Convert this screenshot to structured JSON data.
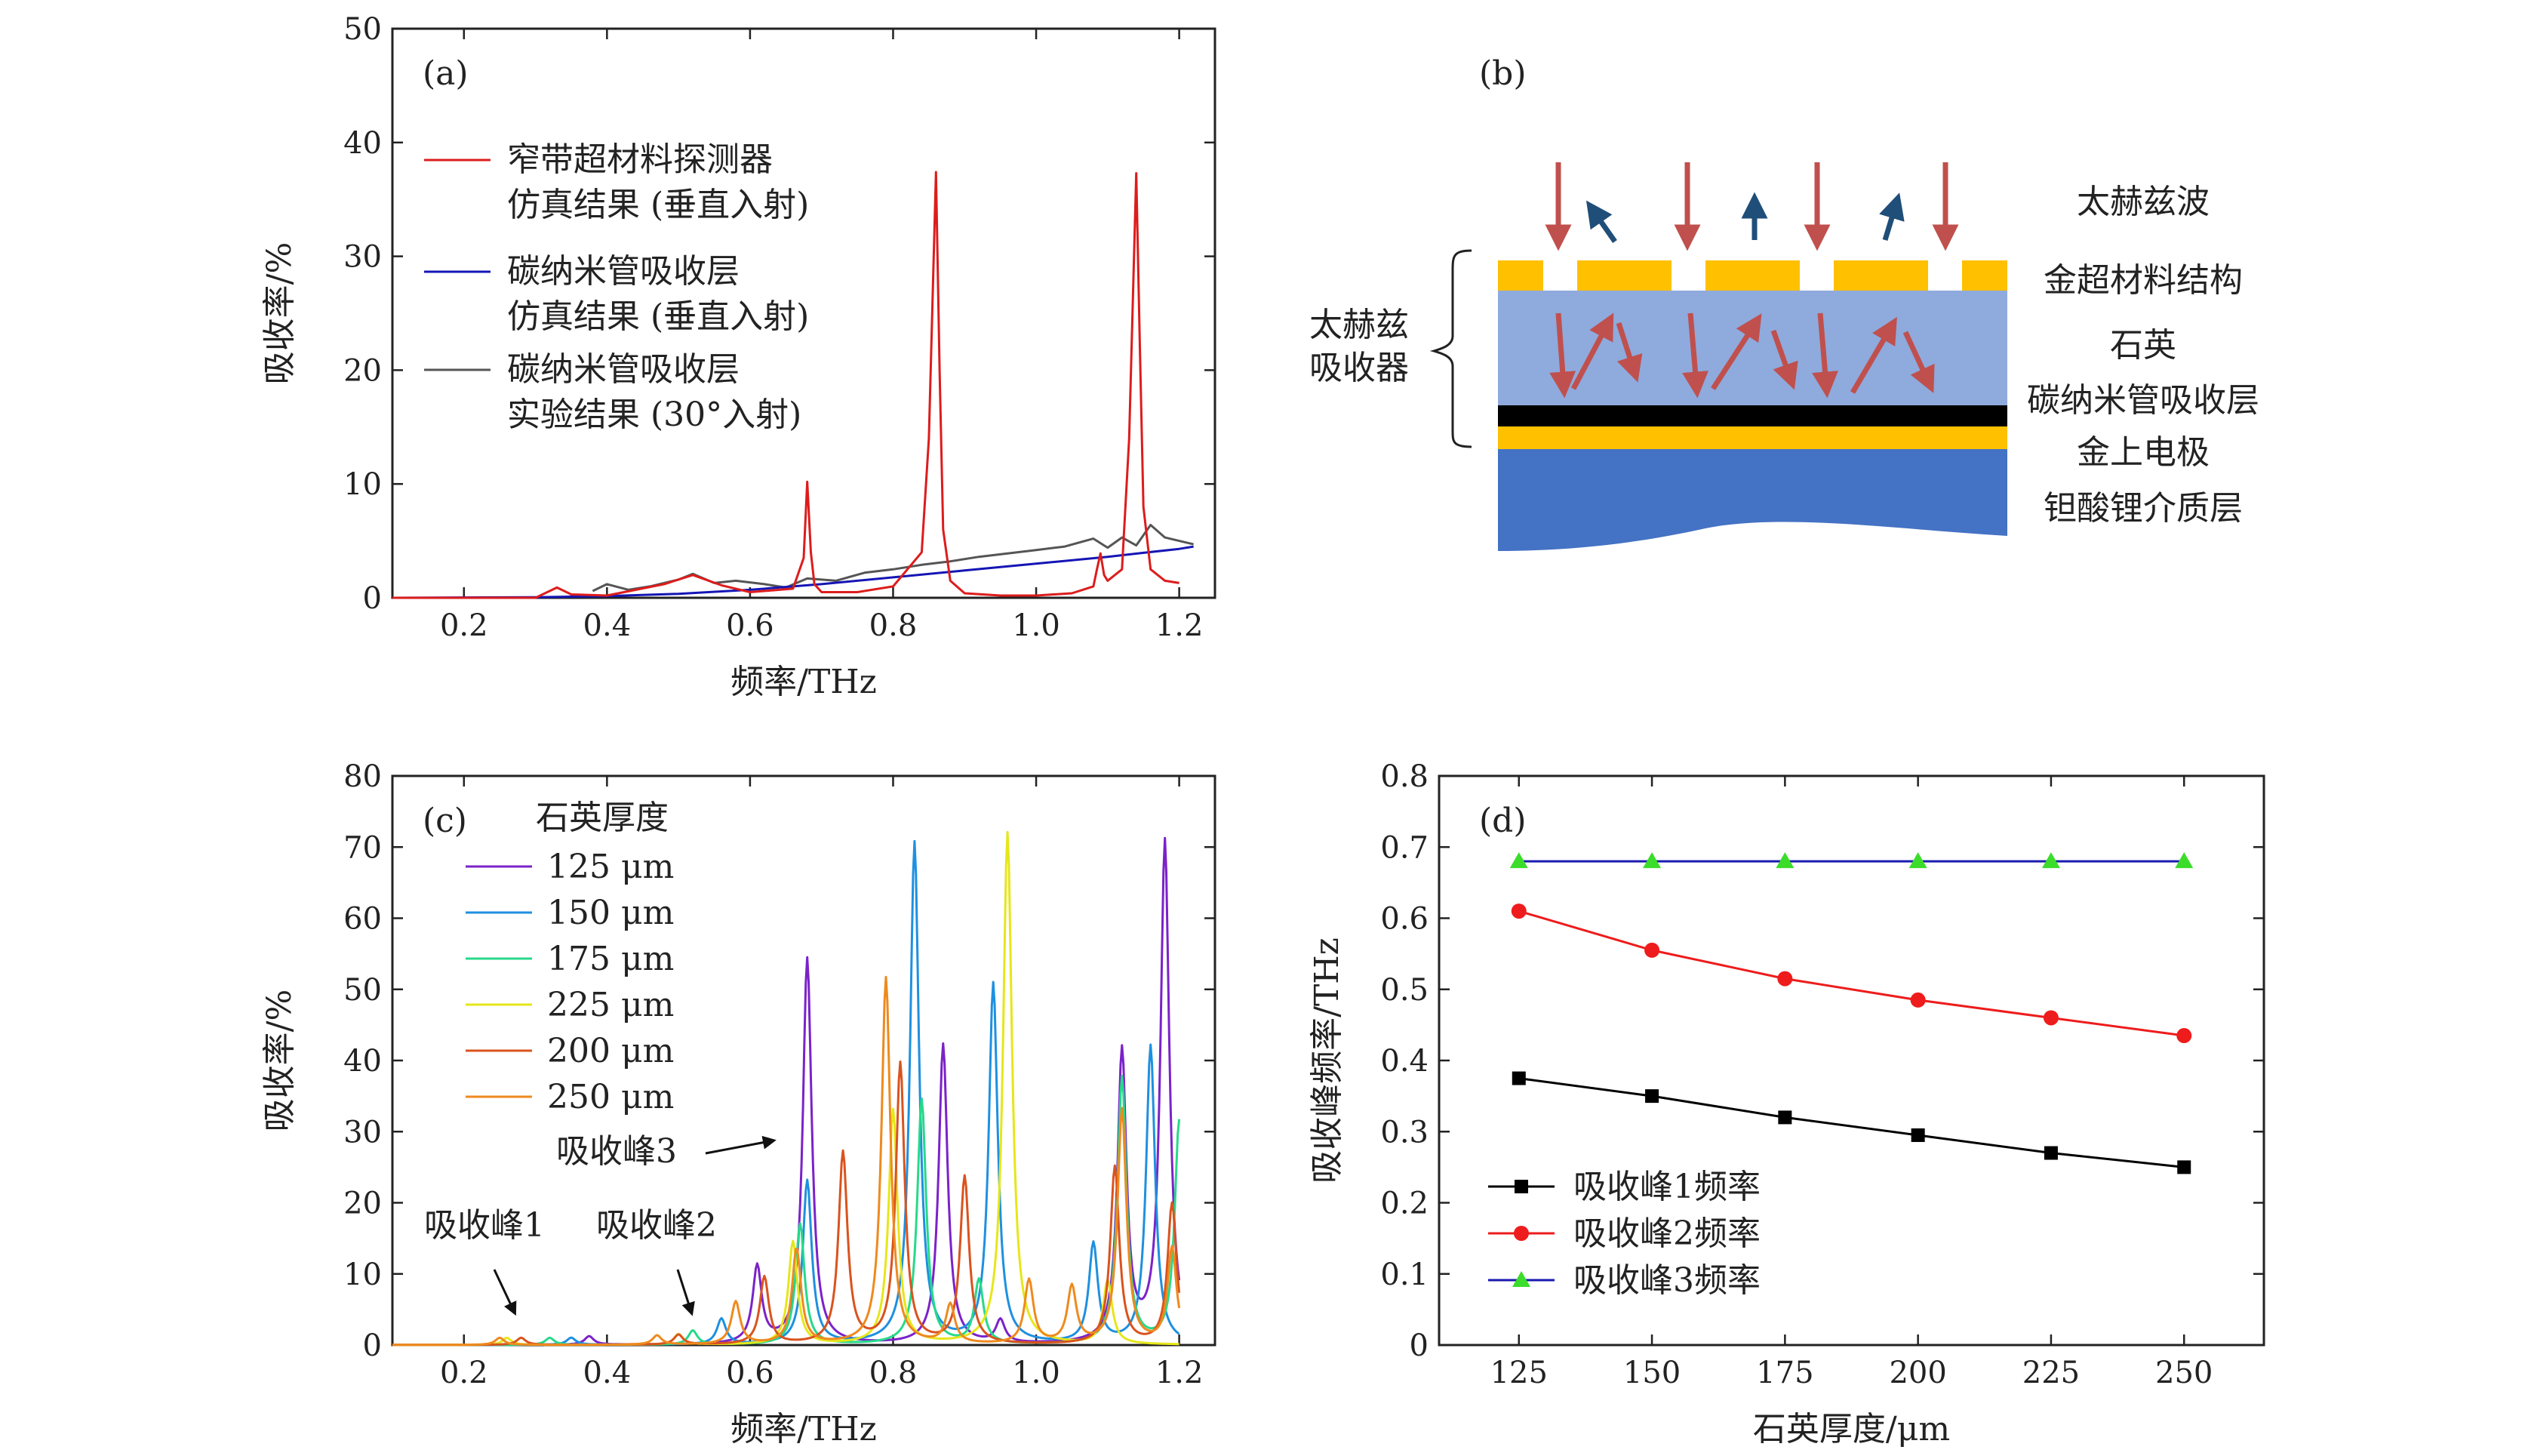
{
  "panel_a": {
    "label": "(a)",
    "legend": [
      {
        "line1": "窄带超材料探测器",
        "line2": "仿真结果 (垂直入射)",
        "color": "#dd1c1c"
      },
      {
        "line1": "碳纳米管吸收层",
        "line2": "仿真结果 (垂直入射)",
        "color": "#1515b5"
      },
      {
        "line1": "碳纳米管吸收层",
        "line2": "实验结果 (30°入射)",
        "color": "#555555"
      }
    ]
  },
  "panel_b": {
    "label": "(b)",
    "absorber_line1": "太赫兹",
    "absorber_line2": "吸收器",
    "layers": [
      "太赫兹波",
      "金超材料结构",
      "石英",
      "碳纳米管吸收层",
      "金上电极",
      "钽酸锂介质层"
    ],
    "colors": {
      "gold": "#ffc000",
      "quartz": "#8faadc",
      "cnt": "#000000",
      "substrate": "#4472c4",
      "arrow_red": "#c0504d",
      "arrow_blue": "#1f4e79"
    }
  },
  "panel_c": {
    "label": "(c)",
    "legend_title": "石英厚度",
    "annotations": {
      "peak1": "吸收峰1",
      "peak2": "吸收峰2",
      "peak3": "吸收峰3"
    }
  },
  "panel_d": {
    "label": "(d)"
  },
  "chart_data": [
    {
      "type": "line",
      "panel": "a",
      "xlabel": "频率/THz",
      "ylabel": "吸收率/%",
      "xlim": [
        0.1,
        1.25
      ],
      "ylim": [
        0,
        50
      ],
      "xticks": [
        0.2,
        0.4,
        0.6,
        0.8,
        1.0,
        1.2
      ],
      "xtick_labels": [
        "0.2",
        "0.4",
        "0.6",
        "0.8",
        "1.0",
        "1.2"
      ],
      "yticks": [
        0,
        10,
        20,
        30,
        40,
        50
      ],
      "ytick_labels": [
        "0",
        "10",
        "20",
        "30",
        "40",
        "50"
      ],
      "series": [
        {
          "name": "窄带超材料探测器 仿真结果 (垂直入射)",
          "color": "#dd1c1c",
          "x": [
            0.1,
            0.3,
            0.31,
            0.33,
            0.35,
            0.4,
            0.48,
            0.52,
            0.56,
            0.6,
            0.66,
            0.675,
            0.68,
            0.685,
            0.69,
            0.7,
            0.75,
            0.8,
            0.84,
            0.85,
            0.86,
            0.865,
            0.87,
            0.88,
            0.9,
            0.95,
            1.0,
            1.05,
            1.08,
            1.085,
            1.09,
            1.095,
            1.1,
            1.12,
            1.13,
            1.14,
            1.145,
            1.15,
            1.16,
            1.18,
            1.2
          ],
          "y": [
            0,
            0,
            0.3,
            0.9,
            0.3,
            0.2,
            1.2,
            2.0,
            1.1,
            0.5,
            0.8,
            3.5,
            10.2,
            4.0,
            1.2,
            0.5,
            0.5,
            1.0,
            4.0,
            14.0,
            37.4,
            20.0,
            6.0,
            1.5,
            0.4,
            0.2,
            0.2,
            0.4,
            1.0,
            2.5,
            3.9,
            2.0,
            1.5,
            2.5,
            14.0,
            37.3,
            22.0,
            8.0,
            2.5,
            1.5,
            1.3
          ]
        },
        {
          "name": "碳纳米管吸收层 仿真结果 (垂直入射)",
          "color": "#1515b5",
          "x": [
            0.1,
            0.3,
            0.4,
            0.5,
            0.6,
            0.7,
            0.8,
            0.9,
            1.0,
            1.1,
            1.15,
            1.2,
            1.22
          ],
          "y": [
            0,
            0.05,
            0.15,
            0.35,
            0.7,
            1.2,
            1.8,
            2.4,
            3.0,
            3.6,
            3.95,
            4.3,
            4.5
          ]
        },
        {
          "name": "碳纳米管吸收层 实验结果 (30°入射)",
          "color": "#555555",
          "x": [
            0.38,
            0.4,
            0.43,
            0.46,
            0.5,
            0.52,
            0.55,
            0.58,
            0.62,
            0.65,
            0.68,
            0.72,
            0.76,
            0.8,
            0.84,
            0.88,
            0.92,
            0.96,
            1.0,
            1.04,
            1.08,
            1.1,
            1.12,
            1.14,
            1.16,
            1.18,
            1.2,
            1.22
          ],
          "y": [
            0.6,
            1.2,
            0.7,
            1.0,
            1.6,
            2.1,
            1.3,
            1.5,
            1.2,
            0.9,
            1.7,
            1.5,
            2.2,
            2.5,
            2.9,
            3.2,
            3.6,
            3.9,
            4.2,
            4.5,
            5.2,
            4.4,
            5.3,
            4.6,
            6.4,
            5.3,
            5.0,
            4.7
          ]
        }
      ]
    },
    {
      "type": "line",
      "panel": "c",
      "xlabel": "频率/THz",
      "ylabel": "吸收率/%",
      "xlim": [
        0.1,
        1.25
      ],
      "ylim": [
        0,
        80
      ],
      "xticks": [
        0.2,
        0.4,
        0.6,
        0.8,
        1.0,
        1.2
      ],
      "xtick_labels": [
        "0.2",
        "0.4",
        "0.6",
        "0.8",
        "1.0",
        "1.2"
      ],
      "yticks": [
        0,
        10,
        20,
        30,
        40,
        50,
        60,
        70,
        80
      ],
      "ytick_labels": [
        "0",
        "10",
        "20",
        "30",
        "40",
        "50",
        "60",
        "70",
        "80"
      ],
      "series": [
        {
          "name": "125 μm",
          "color": "#7b22c9",
          "peaks": [
            [
              0.375,
              1.2
            ],
            [
              0.61,
              10.8
            ],
            [
              0.68,
              54.3
            ],
            [
              0.87,
              42.2
            ],
            [
              0.95,
              3.2
            ],
            [
              1.12,
              41.0
            ],
            [
              1.18,
              70.6
            ]
          ]
        },
        {
          "name": "150 μm",
          "color": "#1e90e0",
          "peaks": [
            [
              0.35,
              1.0
            ],
            [
              0.56,
              3.6
            ],
            [
              0.68,
              23.0
            ],
            [
              0.83,
              70.5
            ],
            [
              0.94,
              50.6
            ],
            [
              1.08,
              14.0
            ],
            [
              1.16,
              42.0
            ]
          ]
        },
        {
          "name": "175 μm",
          "color": "#27d98a",
          "peaks": [
            [
              0.32,
              1.0
            ],
            [
              0.52,
              2.0
            ],
            [
              0.67,
              17.0
            ],
            [
              0.84,
              34.5
            ],
            [
              0.92,
              9.0
            ],
            [
              1.12,
              37.5
            ],
            [
              1.2,
              31.4
            ]
          ]
        },
        {
          "name": "225 μm",
          "color": "#e6e61a",
          "peaks": [
            [
              0.26,
              1.0
            ],
            [
              0.5,
              1.5
            ],
            [
              0.66,
              14.5
            ],
            [
              0.8,
              33.0
            ],
            [
              0.96,
              72.0
            ],
            [
              1.1,
              9.0
            ]
          ]
        },
        {
          "name": "200 μm",
          "color": "#d9531e",
          "peaks": [
            [
              0.28,
              1.0
            ],
            [
              0.5,
              1.4
            ],
            [
              0.62,
              9.5
            ],
            [
              0.73,
              26.9
            ],
            [
              0.81,
              39.4
            ],
            [
              0.9,
              23.5
            ],
            [
              1.11,
              25.0
            ],
            [
              1.19,
              19.8
            ]
          ]
        },
        {
          "name": "250 μm",
          "color": "#ee8a1e",
          "peaks": [
            [
              0.25,
              1.0
            ],
            [
              0.47,
              1.3
            ],
            [
              0.58,
              6.0
            ],
            [
              0.665,
              13.5
            ],
            [
              0.79,
              51.6
            ],
            [
              0.88,
              5.5
            ],
            [
              0.99,
              9.0
            ],
            [
              1.05,
              8.0
            ],
            [
              1.12,
              33.0
            ],
            [
              1.19,
              13.5
            ]
          ]
        }
      ]
    },
    {
      "type": "line",
      "panel": "d",
      "xlabel": "石英厚度/μm",
      "ylabel": "吸收峰频率/THz",
      "xlim": [
        110,
        265
      ],
      "ylim": [
        0,
        0.8
      ],
      "xticks": [
        125,
        150,
        175,
        200,
        225,
        250
      ],
      "xtick_labels": [
        "125",
        "150",
        "175",
        "200",
        "225",
        "250"
      ],
      "yticks": [
        0,
        0.1,
        0.2,
        0.3,
        0.4,
        0.5,
        0.6,
        0.7,
        0.8
      ],
      "ytick_labels": [
        "0",
        "0.1",
        "0.2",
        "0.3",
        "0.4",
        "0.5",
        "0.6",
        "0.7",
        "0.8"
      ],
      "categories": [
        125,
        150,
        175,
        200,
        225,
        250
      ],
      "series": [
        {
          "name": "吸收峰1频率",
          "marker": "square",
          "line_color": "#000000",
          "marker_color": "#000000",
          "values": [
            0.375,
            0.35,
            0.32,
            0.295,
            0.27,
            0.25
          ]
        },
        {
          "name": "吸收峰2频率",
          "marker": "circle",
          "line_color": "#ee1c1c",
          "marker_color": "#ee1c1c",
          "values": [
            0.61,
            0.555,
            0.515,
            0.485,
            0.46,
            0.435
          ]
        },
        {
          "name": "吸收峰3频率",
          "marker": "triangle",
          "line_color": "#1a1ab0",
          "marker_color": "#3bdc2a",
          "values": [
            0.68,
            0.68,
            0.68,
            0.68,
            0.68,
            0.68
          ]
        }
      ]
    }
  ]
}
